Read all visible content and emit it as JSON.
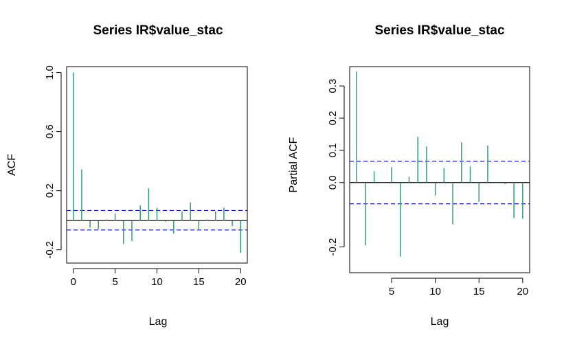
{
  "chart_data": [
    {
      "type": "bar",
      "title": "Series  IR$value_stac",
      "xlabel": "Lag",
      "ylabel": "ACF",
      "xlim": [
        -0.8,
        20.8
      ],
      "ylim": [
        -0.29,
        1.04
      ],
      "xticks": [
        "0",
        "5",
        "10",
        "15",
        "20"
      ],
      "yticks": [
        "-0.2",
        "0.2",
        "0.6",
        "1.0"
      ],
      "confidence_bound": 0.066,
      "bar_color": "#2e9e79",
      "ci_color": "#0000ff",
      "lags": [
        0,
        1,
        2,
        3,
        4,
        5,
        6,
        7,
        8,
        9,
        10,
        11,
        12,
        13,
        14,
        15,
        16,
        17,
        18,
        19,
        20
      ],
      "values": [
        1.0,
        0.345,
        -0.05,
        -0.06,
        0.005,
        0.045,
        -0.16,
        -0.14,
        0.1,
        0.215,
        0.085,
        -0.01,
        -0.09,
        0.06,
        0.12,
        -0.06,
        0.005,
        0.06,
        0.085,
        -0.04,
        -0.22
      ]
    },
    {
      "type": "bar",
      "title": "Series  IR$value_stac",
      "xlabel": "Lag",
      "ylabel": "Partial ACF",
      "xlim": [
        0.2,
        20.8
      ],
      "ylim": [
        -0.28,
        0.36
      ],
      "xticks": [
        "5",
        "10",
        "15",
        "20"
      ],
      "yticks": [
        "-0.2",
        "0.0",
        "0.1",
        "0.2",
        "0.3"
      ],
      "confidence_bound": 0.066,
      "bar_color": "#2e9e79",
      "ci_color": "#0000ff",
      "lags": [
        1,
        2,
        3,
        4,
        5,
        6,
        7,
        8,
        9,
        10,
        11,
        12,
        13,
        14,
        15,
        16,
        17,
        18,
        19,
        20
      ],
      "values": [
        0.345,
        -0.195,
        0.035,
        -0.002,
        0.048,
        -0.23,
        0.018,
        0.142,
        0.112,
        -0.04,
        0.045,
        -0.13,
        0.125,
        0.05,
        -0.06,
        0.115,
        -0.002,
        -0.005,
        -0.11,
        -0.112
      ]
    }
  ]
}
